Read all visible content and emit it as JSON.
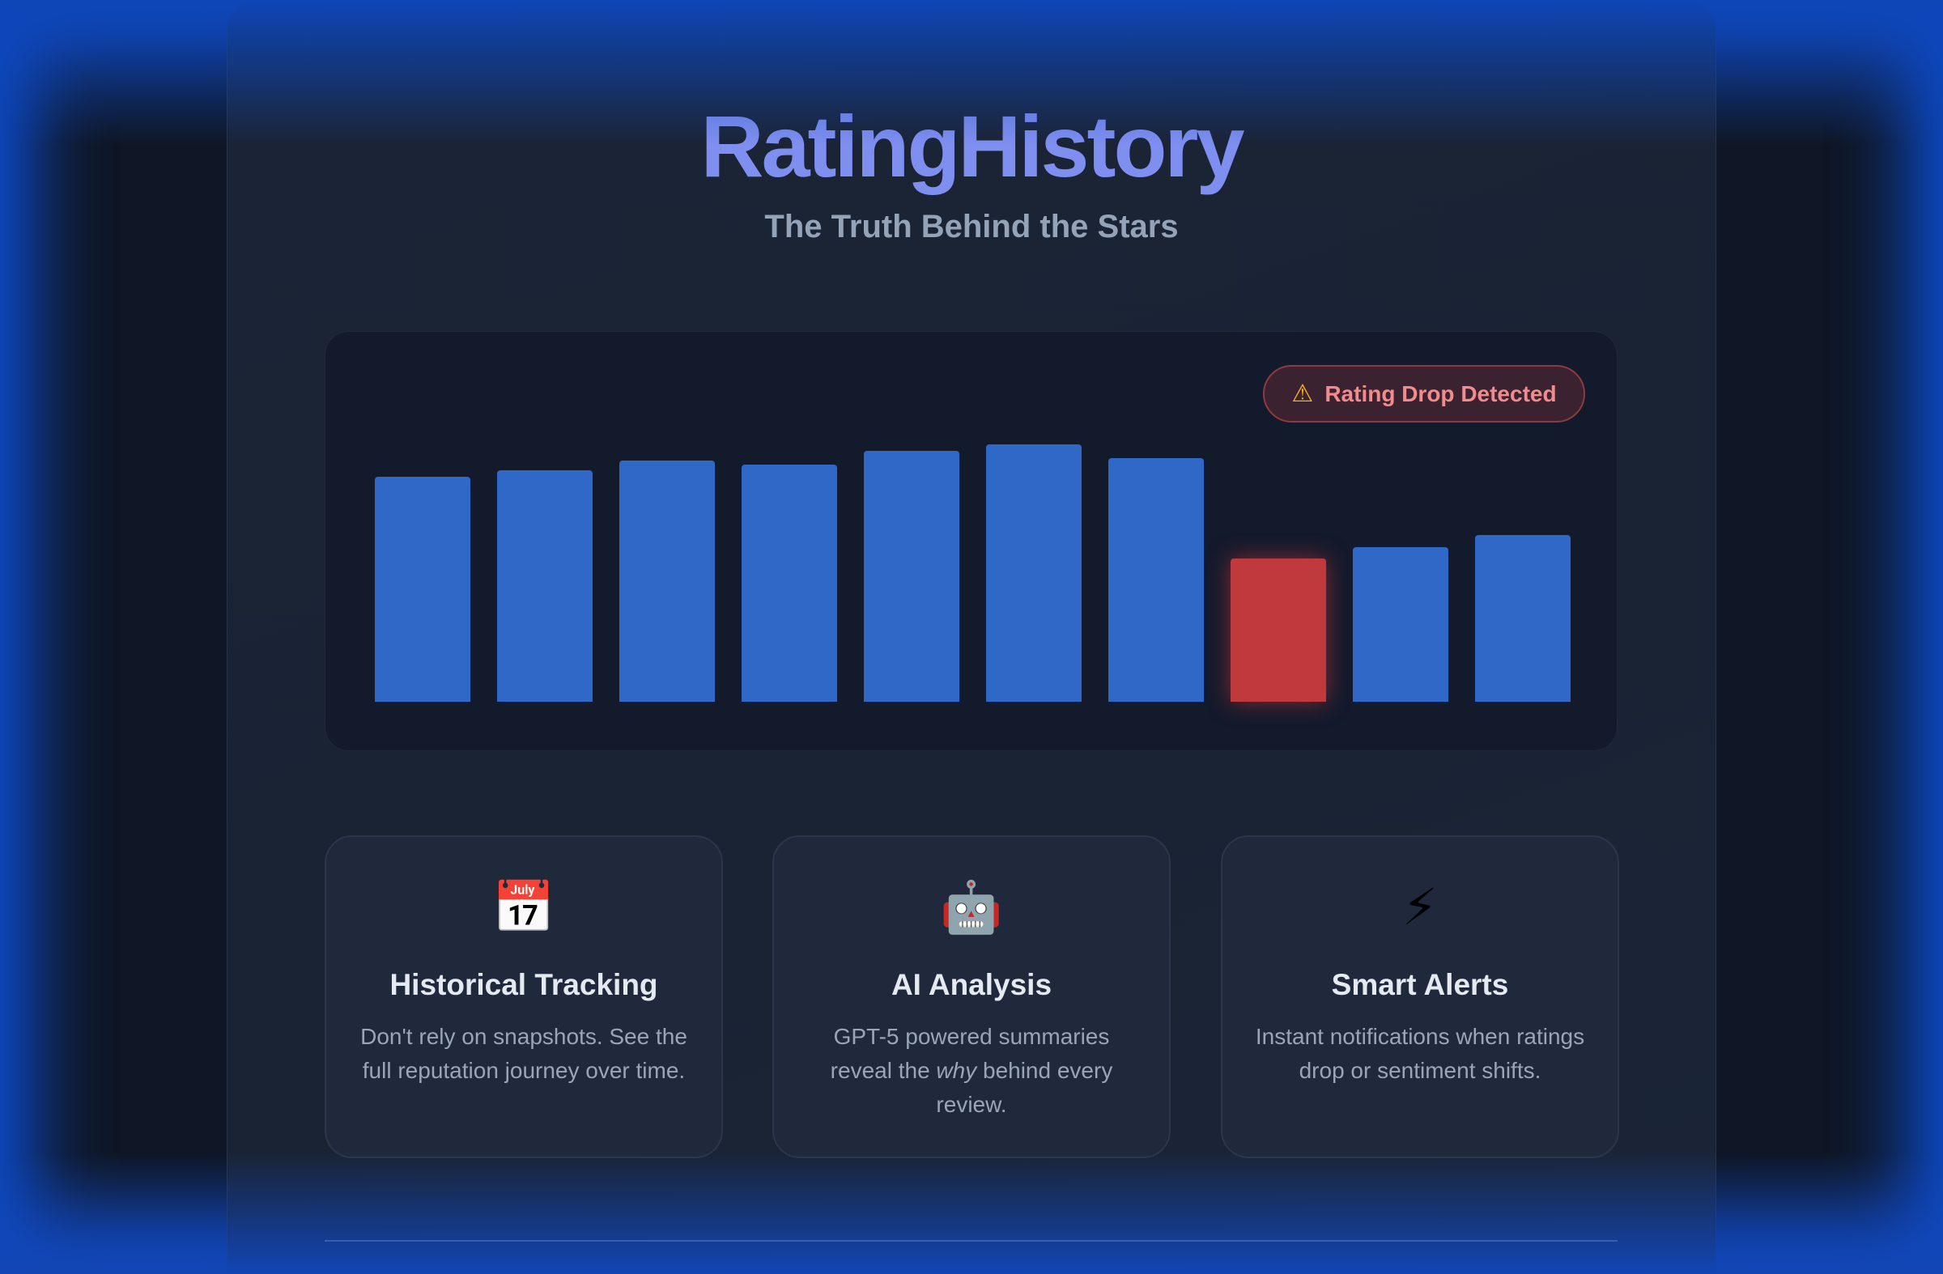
{
  "header": {
    "title": "RatingHistory",
    "subtitle": "The Truth Behind the Stars"
  },
  "alert": {
    "label": "Rating Drop Detected",
    "icon": "warning-icon"
  },
  "colors": {
    "accent": "#7f8ff0",
    "bar": "#3068c8",
    "drop_bar": "#c0393d"
  },
  "chart_data": {
    "type": "bar",
    "values": [
      87.5,
      90,
      93.8,
      92.3,
      97.6,
      100,
      94.7,
      55.8,
      60.1,
      64.9
    ],
    "highlight_index": 7,
    "grid": false
  },
  "features": [
    {
      "icon": "calendar-icon",
      "glyph": "📅",
      "title": "Historical Tracking",
      "desc": "Don't rely on snapshots. See the full reputation journey over time."
    },
    {
      "icon": "robot-icon",
      "glyph": "🤖",
      "title": "AI Analysis",
      "desc_pre": "GPT-5 powered summaries reveal the ",
      "desc_em": "why",
      "desc_post": " behind every review."
    },
    {
      "icon": "lightning-icon",
      "glyph": "⚡",
      "title": "Smart Alerts",
      "desc": "Instant notifications when ratings drop or sentiment shifts."
    }
  ]
}
